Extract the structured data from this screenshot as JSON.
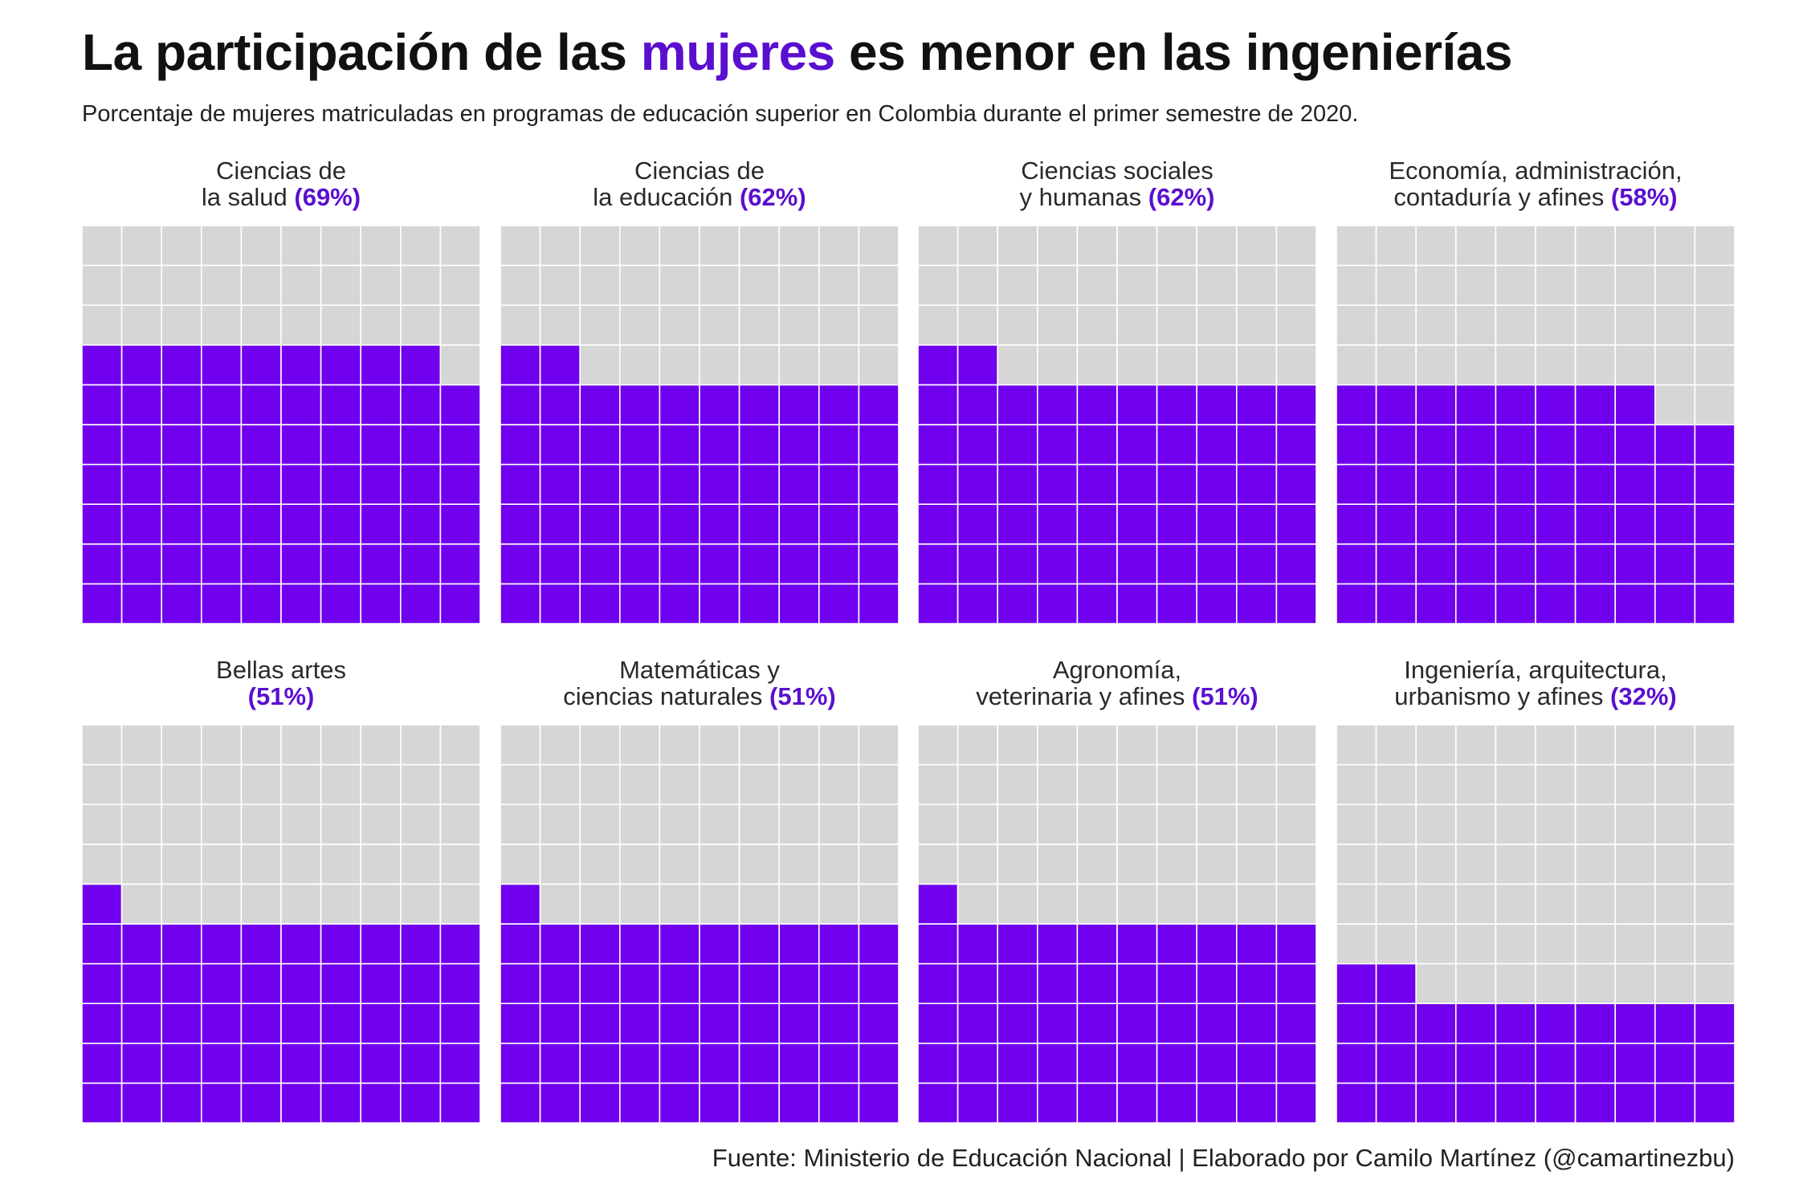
{
  "title": {
    "pre": "La participación de las ",
    "highlight": "mujeres",
    "post": " es menor en las ingenierías"
  },
  "subtitle": "Porcentaje de mujeres matriculadas en programas de educación superior en Colombia durante el primer semestre de 2020.",
  "source": "Fuente: Ministerio de Educación Nacional | Elaborado por Camilo Martínez (@camartinezbu)",
  "colors": {
    "filled": "#7000ee",
    "empty": "#d6d6d6",
    "grid_line": "#ffffff",
    "highlight": "#5a0fcf"
  },
  "chart_data": {
    "type": "waffle",
    "grid": "10x10",
    "total_cells": 100,
    "unit": "%",
    "panels": [
      {
        "label_line1": "Ciencias de",
        "label_line2": "la salud",
        "pct_label": "(69%)",
        "value": 69
      },
      {
        "label_line1": "Ciencias de",
        "label_line2": "la educación",
        "pct_label": "(62%)",
        "value": 62
      },
      {
        "label_line1": "Ciencias sociales",
        "label_line2": "y humanas",
        "pct_label": "(62%)",
        "value": 62
      },
      {
        "label_line1": "Economía, administración,",
        "label_line2": "contaduría y afines",
        "pct_label": "(58%)",
        "value": 58
      },
      {
        "label_line1": "Bellas artes",
        "label_line2": "",
        "pct_label": "(51%)",
        "value": 51
      },
      {
        "label_line1": "Matemáticas y",
        "label_line2": "ciencias naturales",
        "pct_label": "(51%)",
        "value": 51
      },
      {
        "label_line1": "Agronomía,",
        "label_line2": "veterinaria y afines",
        "pct_label": "(51%)",
        "value": 51
      },
      {
        "label_line1": "Ingeniería, arquitectura,",
        "label_line2": "urbanismo y afines",
        "pct_label": "(32%)",
        "value": 32
      }
    ]
  }
}
